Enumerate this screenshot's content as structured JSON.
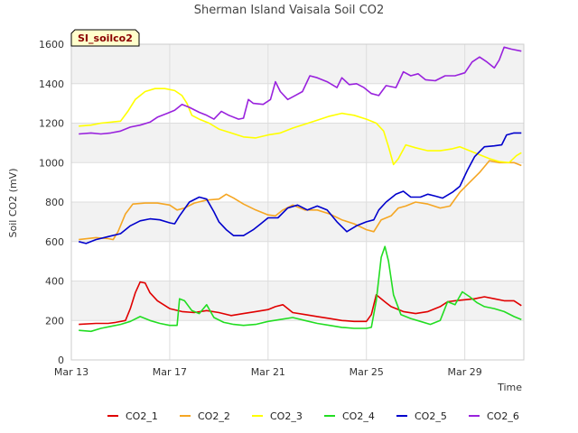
{
  "chart_data": {
    "type": "line",
    "title": "Sherman Island Vaisala Soil CO2",
    "xlabel": "Time",
    "ylabel": "Soil CO2 (mV)",
    "site_label": "SI_soilco2",
    "x_unit": "days since Mar 13",
    "xlim": [
      0,
      18.4
    ],
    "ylim": [
      0,
      1600
    ],
    "y_ticks": [
      0,
      200,
      400,
      600,
      800,
      1000,
      1200,
      1400,
      1600
    ],
    "x_ticks": [
      {
        "value": 0,
        "label": "Mar 13"
      },
      {
        "value": 4,
        "label": "Mar 17"
      },
      {
        "value": 8,
        "label": "Mar 21"
      },
      {
        "value": 12,
        "label": "Mar 25"
      },
      {
        "value": 16,
        "label": "Mar 29"
      }
    ],
    "series": [
      {
        "name": "CO2_1",
        "color": "#e00000",
        "points": [
          [
            0.3,
            180
          ],
          [
            1.0,
            185
          ],
          [
            1.5,
            185
          ],
          [
            1.8,
            190
          ],
          [
            2.2,
            200
          ],
          [
            2.4,
            260
          ],
          [
            2.6,
            340
          ],
          [
            2.8,
            395
          ],
          [
            3.0,
            390
          ],
          [
            3.2,
            340
          ],
          [
            3.5,
            300
          ],
          [
            4.0,
            260
          ],
          [
            4.5,
            245
          ],
          [
            5.0,
            240
          ],
          [
            5.5,
            250
          ],
          [
            6.0,
            240
          ],
          [
            6.5,
            225
          ],
          [
            7.0,
            235
          ],
          [
            7.5,
            245
          ],
          [
            8.0,
            255
          ],
          [
            8.3,
            270
          ],
          [
            8.6,
            280
          ],
          [
            9.0,
            240
          ],
          [
            9.5,
            230
          ],
          [
            10.0,
            220
          ],
          [
            10.5,
            210
          ],
          [
            11.0,
            200
          ],
          [
            11.5,
            195
          ],
          [
            12.0,
            195
          ],
          [
            12.2,
            230
          ],
          [
            12.4,
            330
          ],
          [
            12.6,
            310
          ],
          [
            12.8,
            290
          ],
          [
            13.0,
            270
          ],
          [
            13.5,
            245
          ],
          [
            14.0,
            235
          ],
          [
            14.5,
            245
          ],
          [
            15.0,
            270
          ],
          [
            15.3,
            295
          ],
          [
            15.6,
            300
          ],
          [
            16.0,
            305
          ],
          [
            16.4,
            310
          ],
          [
            16.8,
            320
          ],
          [
            17.2,
            310
          ],
          [
            17.6,
            300
          ],
          [
            18.0,
            300
          ],
          [
            18.3,
            275
          ]
        ]
      },
      {
        "name": "CO2_2",
        "color": "#f5a623",
        "points": [
          [
            0.3,
            610
          ],
          [
            1.0,
            620
          ],
          [
            1.5,
            615
          ],
          [
            1.7,
            610
          ],
          [
            1.9,
            650
          ],
          [
            2.2,
            740
          ],
          [
            2.5,
            790
          ],
          [
            3.0,
            795
          ],
          [
            3.5,
            795
          ],
          [
            4.0,
            785
          ],
          [
            4.3,
            760
          ],
          [
            4.6,
            770
          ],
          [
            5.0,
            795
          ],
          [
            5.5,
            810
          ],
          [
            6.0,
            815
          ],
          [
            6.3,
            840
          ],
          [
            6.6,
            820
          ],
          [
            7.0,
            790
          ],
          [
            7.5,
            760
          ],
          [
            8.0,
            735
          ],
          [
            8.3,
            730
          ],
          [
            8.6,
            760
          ],
          [
            9.0,
            785
          ],
          [
            9.5,
            760
          ],
          [
            10.0,
            760
          ],
          [
            10.5,
            740
          ],
          [
            11.0,
            710
          ],
          [
            11.5,
            690
          ],
          [
            12.0,
            660
          ],
          [
            12.3,
            650
          ],
          [
            12.6,
            710
          ],
          [
            13.0,
            730
          ],
          [
            13.3,
            770
          ],
          [
            13.6,
            780
          ],
          [
            14.0,
            800
          ],
          [
            14.5,
            790
          ],
          [
            15.0,
            770
          ],
          [
            15.4,
            780
          ],
          [
            15.8,
            850
          ],
          [
            16.2,
            900
          ],
          [
            16.6,
            950
          ],
          [
            17.0,
            1010
          ],
          [
            17.4,
            1000
          ],
          [
            17.8,
            1000
          ],
          [
            18.0,
            1000
          ],
          [
            18.3,
            985
          ]
        ]
      },
      {
        "name": "CO2_3",
        "color": "#ffff00",
        "points": [
          [
            0.3,
            1185
          ],
          [
            0.8,
            1190
          ],
          [
            1.2,
            1200
          ],
          [
            1.6,
            1205
          ],
          [
            2.0,
            1210
          ],
          [
            2.3,
            1260
          ],
          [
            2.6,
            1320
          ],
          [
            3.0,
            1360
          ],
          [
            3.4,
            1375
          ],
          [
            3.8,
            1375
          ],
          [
            4.2,
            1365
          ],
          [
            4.5,
            1340
          ],
          [
            4.7,
            1300
          ],
          [
            4.9,
            1240
          ],
          [
            5.2,
            1220
          ],
          [
            5.6,
            1200
          ],
          [
            6.0,
            1170
          ],
          [
            6.5,
            1150
          ],
          [
            7.0,
            1130
          ],
          [
            7.5,
            1125
          ],
          [
            8.0,
            1140
          ],
          [
            8.5,
            1150
          ],
          [
            9.0,
            1175
          ],
          [
            9.5,
            1195
          ],
          [
            10.0,
            1215
          ],
          [
            10.5,
            1235
          ],
          [
            11.0,
            1250
          ],
          [
            11.5,
            1240
          ],
          [
            12.0,
            1220
          ],
          [
            12.4,
            1200
          ],
          [
            12.7,
            1160
          ],
          [
            12.9,
            1080
          ],
          [
            13.1,
            990
          ],
          [
            13.3,
            1020
          ],
          [
            13.6,
            1090
          ],
          [
            14.0,
            1075
          ],
          [
            14.5,
            1060
          ],
          [
            15.0,
            1060
          ],
          [
            15.5,
            1070
          ],
          [
            15.8,
            1080
          ],
          [
            16.2,
            1060
          ],
          [
            16.6,
            1040
          ],
          [
            17.0,
            1020
          ],
          [
            17.4,
            1005
          ],
          [
            17.8,
            1000
          ],
          [
            18.1,
            1035
          ],
          [
            18.3,
            1050
          ]
        ]
      },
      {
        "name": "CO2_4",
        "color": "#22dd22",
        "points": [
          [
            0.3,
            150
          ],
          [
            0.8,
            145
          ],
          [
            1.2,
            160
          ],
          [
            1.6,
            170
          ],
          [
            2.0,
            180
          ],
          [
            2.4,
            195
          ],
          [
            2.8,
            220
          ],
          [
            3.2,
            200
          ],
          [
            3.6,
            185
          ],
          [
            4.0,
            175
          ],
          [
            4.3,
            175
          ],
          [
            4.4,
            310
          ],
          [
            4.6,
            300
          ],
          [
            4.9,
            250
          ],
          [
            5.2,
            235
          ],
          [
            5.5,
            280
          ],
          [
            5.8,
            215
          ],
          [
            6.2,
            190
          ],
          [
            6.6,
            180
          ],
          [
            7.0,
            175
          ],
          [
            7.5,
            180
          ],
          [
            8.0,
            195
          ],
          [
            8.5,
            205
          ],
          [
            9.0,
            215
          ],
          [
            9.5,
            200
          ],
          [
            10.0,
            185
          ],
          [
            10.5,
            175
          ],
          [
            11.0,
            165
          ],
          [
            11.5,
            160
          ],
          [
            12.0,
            160
          ],
          [
            12.2,
            165
          ],
          [
            12.4,
            300
          ],
          [
            12.6,
            520
          ],
          [
            12.75,
            575
          ],
          [
            12.9,
            500
          ],
          [
            13.1,
            330
          ],
          [
            13.4,
            230
          ],
          [
            13.8,
            210
          ],
          [
            14.2,
            195
          ],
          [
            14.6,
            180
          ],
          [
            15.0,
            200
          ],
          [
            15.3,
            295
          ],
          [
            15.6,
            280
          ],
          [
            15.9,
            345
          ],
          [
            16.2,
            320
          ],
          [
            16.5,
            290
          ],
          [
            16.8,
            270
          ],
          [
            17.2,
            260
          ],
          [
            17.6,
            245
          ],
          [
            18.0,
            220
          ],
          [
            18.3,
            205
          ]
        ]
      },
      {
        "name": "CO2_5",
        "color": "#0000cc",
        "points": [
          [
            0.3,
            600
          ],
          [
            0.6,
            590
          ],
          [
            1.0,
            610
          ],
          [
            1.5,
            625
          ],
          [
            2.0,
            640
          ],
          [
            2.4,
            680
          ],
          [
            2.8,
            705
          ],
          [
            3.2,
            715
          ],
          [
            3.6,
            710
          ],
          [
            4.0,
            695
          ],
          [
            4.2,
            690
          ],
          [
            4.4,
            730
          ],
          [
            4.8,
            800
          ],
          [
            5.2,
            825
          ],
          [
            5.5,
            815
          ],
          [
            5.8,
            750
          ],
          [
            6.0,
            700
          ],
          [
            6.3,
            660
          ],
          [
            6.6,
            630
          ],
          [
            7.0,
            630
          ],
          [
            7.4,
            660
          ],
          [
            7.7,
            690
          ],
          [
            8.0,
            720
          ],
          [
            8.4,
            720
          ],
          [
            8.8,
            770
          ],
          [
            9.2,
            785
          ],
          [
            9.6,
            760
          ],
          [
            10.0,
            780
          ],
          [
            10.4,
            760
          ],
          [
            10.8,
            700
          ],
          [
            11.2,
            650
          ],
          [
            11.6,
            680
          ],
          [
            12.0,
            700
          ],
          [
            12.3,
            710
          ],
          [
            12.5,
            760
          ],
          [
            12.8,
            800
          ],
          [
            13.2,
            840
          ],
          [
            13.5,
            855
          ],
          [
            13.8,
            825
          ],
          [
            14.2,
            825
          ],
          [
            14.5,
            840
          ],
          [
            14.8,
            830
          ],
          [
            15.1,
            820
          ],
          [
            15.5,
            850
          ],
          [
            15.8,
            880
          ],
          [
            16.1,
            960
          ],
          [
            16.4,
            1030
          ],
          [
            16.8,
            1080
          ],
          [
            17.2,
            1085
          ],
          [
            17.5,
            1090
          ],
          [
            17.7,
            1140
          ],
          [
            18.0,
            1150
          ],
          [
            18.3,
            1150
          ]
        ]
      },
      {
        "name": "CO2_6",
        "color": "#9922dd",
        "points": [
          [
            0.3,
            1145
          ],
          [
            0.8,
            1150
          ],
          [
            1.2,
            1145
          ],
          [
            1.6,
            1150
          ],
          [
            2.0,
            1160
          ],
          [
            2.4,
            1180
          ],
          [
            2.8,
            1190
          ],
          [
            3.2,
            1205
          ],
          [
            3.5,
            1230
          ],
          [
            3.9,
            1250
          ],
          [
            4.2,
            1265
          ],
          [
            4.5,
            1295
          ],
          [
            4.8,
            1280
          ],
          [
            5.2,
            1255
          ],
          [
            5.5,
            1240
          ],
          [
            5.8,
            1220
          ],
          [
            6.1,
            1260
          ],
          [
            6.4,
            1240
          ],
          [
            6.8,
            1220
          ],
          [
            7.0,
            1225
          ],
          [
            7.2,
            1320
          ],
          [
            7.4,
            1300
          ],
          [
            7.8,
            1295
          ],
          [
            8.1,
            1320
          ],
          [
            8.3,
            1410
          ],
          [
            8.5,
            1360
          ],
          [
            8.8,
            1320
          ],
          [
            9.1,
            1340
          ],
          [
            9.4,
            1360
          ],
          [
            9.7,
            1440
          ],
          [
            10.0,
            1430
          ],
          [
            10.4,
            1410
          ],
          [
            10.8,
            1380
          ],
          [
            11.0,
            1430
          ],
          [
            11.3,
            1395
          ],
          [
            11.6,
            1400
          ],
          [
            11.9,
            1380
          ],
          [
            12.2,
            1350
          ],
          [
            12.5,
            1340
          ],
          [
            12.8,
            1390
          ],
          [
            13.2,
            1380
          ],
          [
            13.5,
            1460
          ],
          [
            13.8,
            1440
          ],
          [
            14.1,
            1450
          ],
          [
            14.4,
            1420
          ],
          [
            14.8,
            1415
          ],
          [
            15.2,
            1440
          ],
          [
            15.6,
            1440
          ],
          [
            16.0,
            1455
          ],
          [
            16.3,
            1510
          ],
          [
            16.6,
            1535
          ],
          [
            16.9,
            1510
          ],
          [
            17.2,
            1480
          ],
          [
            17.4,
            1520
          ],
          [
            17.6,
            1585
          ],
          [
            17.9,
            1575
          ],
          [
            18.3,
            1565
          ]
        ]
      }
    ]
  }
}
